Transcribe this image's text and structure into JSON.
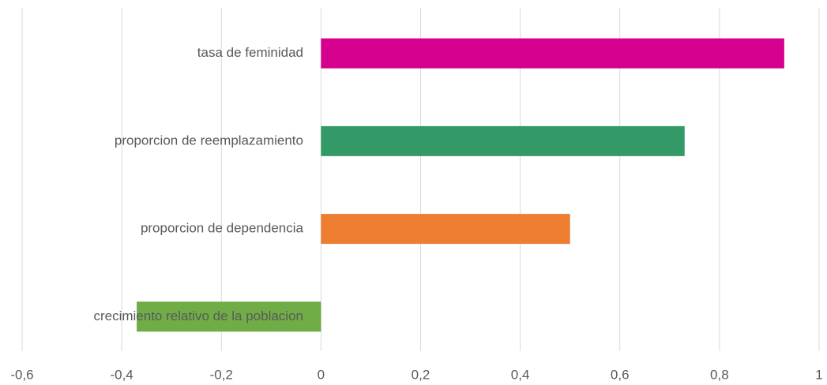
{
  "chart_data": {
    "type": "bar",
    "orientation": "horizontal",
    "categories": [
      "tasa de feminidad",
      "proporcion de reemplazamiento",
      "proporcion de dependencia",
      "crecimiento relativo de la poblacion"
    ],
    "values": [
      0.93,
      0.73,
      0.5,
      -0.37
    ],
    "colors": [
      "#d6008f",
      "#339966",
      "#ed7d31",
      "#70ad47"
    ],
    "xlim": [
      -0.6,
      1
    ],
    "xticks": [
      {
        "value": -0.6,
        "label": "-0,6"
      },
      {
        "value": -0.4,
        "label": "-0,4"
      },
      {
        "value": -0.2,
        "label": "-0,2"
      },
      0,
      {
        "value": 0.2,
        "label": "0,2"
      },
      {
        "value": 0.4,
        "label": "0,4"
      },
      {
        "value": 0.6,
        "label": "0,6"
      },
      {
        "value": 0.8,
        "label": "0,8"
      },
      1
    ],
    "grid": true
  }
}
